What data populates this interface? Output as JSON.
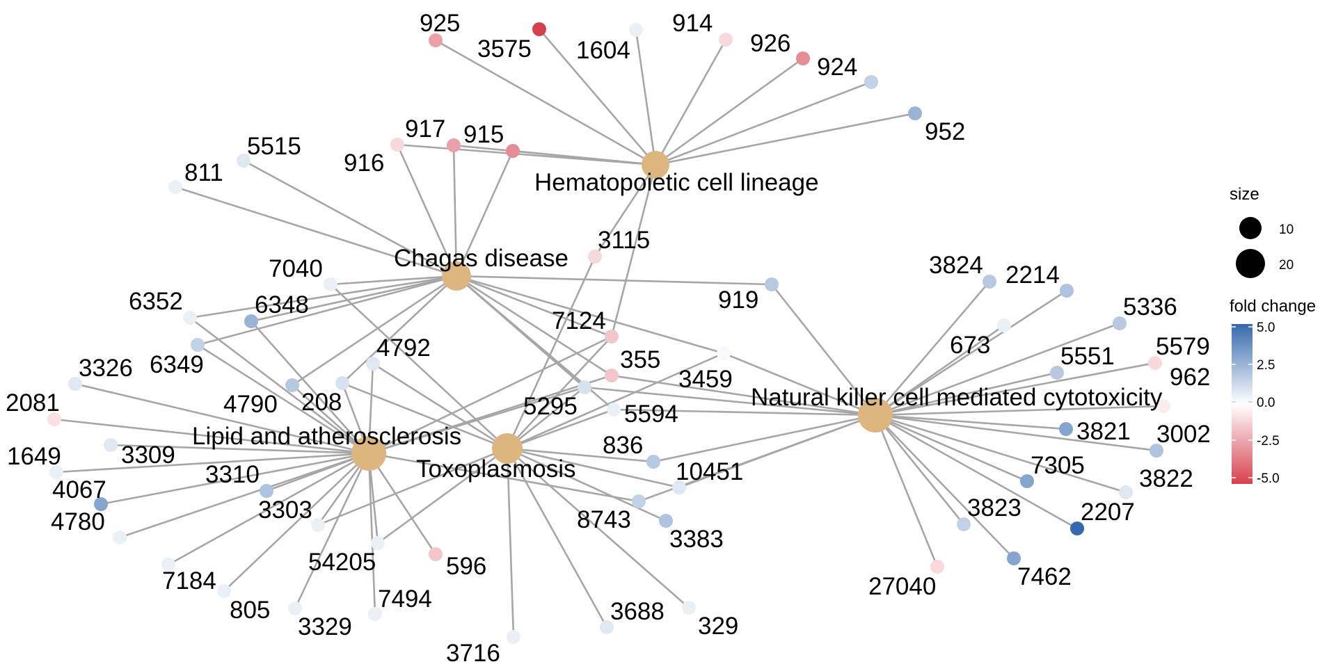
{
  "network": {
    "hubs": [
      {
        "id": "hema",
        "label": "Hematopoietic cell lineage"
      },
      {
        "id": "chagas",
        "label": "Chagas disease"
      },
      {
        "id": "lipid",
        "label": "Lipid and atherosclerosis"
      },
      {
        "id": "toxo",
        "label": "Toxoplasmosis"
      },
      {
        "id": "nk",
        "label": "Natural killer cell mediated cytotoxicity"
      }
    ],
    "hub_color": "#dcb57f",
    "genes": [
      {
        "label": "925",
        "fc": -2.5,
        "links": [
          "hema"
        ]
      },
      {
        "label": "3575",
        "fc": -5.0,
        "links": [
          "hema"
        ]
      },
      {
        "label": "1604",
        "fc": 0.5,
        "links": [
          "hema"
        ]
      },
      {
        "label": "914",
        "fc": -1.0,
        "links": [
          "hema"
        ]
      },
      {
        "label": "926",
        "fc": -3.0,
        "links": [
          "hema"
        ]
      },
      {
        "label": "924",
        "fc": 1.5,
        "links": [
          "hema"
        ]
      },
      {
        "label": "952",
        "fc": 2.5,
        "links": [
          "hema"
        ]
      },
      {
        "label": "916",
        "fc": -1.0,
        "links": [
          "hema",
          "chagas"
        ]
      },
      {
        "label": "917",
        "fc": -2.5,
        "links": [
          "hema",
          "chagas"
        ]
      },
      {
        "label": "915",
        "fc": -3.0,
        "links": [
          "hema",
          "chagas"
        ]
      },
      {
        "label": "5515",
        "fc": 0.8,
        "links": [
          "chagas"
        ]
      },
      {
        "label": "811",
        "fc": 0.5,
        "links": [
          "chagas"
        ]
      },
      {
        "label": "3115",
        "fc": -1.0,
        "links": [
          "hema",
          "toxo"
        ]
      },
      {
        "label": "7040",
        "fc": 0.5,
        "links": [
          "chagas",
          "toxo"
        ]
      },
      {
        "label": "919",
        "fc": 1.8,
        "links": [
          "chagas",
          "nk"
        ]
      },
      {
        "label": "6352",
        "fc": 0.5,
        "links": [
          "chagas",
          "lipid"
        ]
      },
      {
        "label": "6348",
        "fc": 2.5,
        "links": [
          "chagas",
          "lipid"
        ]
      },
      {
        "label": "6349",
        "fc": 1.5,
        "links": [
          "chagas",
          "lipid"
        ]
      },
      {
        "label": "7124",
        "fc": -1.5,
        "links": [
          "hema",
          "chagas",
          "lipid",
          "toxo"
        ]
      },
      {
        "label": "4792",
        "fc": 0.8,
        "links": [
          "lipid",
          "toxo"
        ]
      },
      {
        "label": "355",
        "fc": -1.5,
        "links": [
          "chagas",
          "lipid",
          "nk"
        ]
      },
      {
        "label": "3459",
        "fc": 0.2,
        "links": [
          "chagas",
          "toxo",
          "nk"
        ]
      },
      {
        "label": "3326",
        "fc": 0.8,
        "links": [
          "lipid"
        ]
      },
      {
        "label": "4790",
        "fc": 1.8,
        "links": [
          "chagas",
          "lipid"
        ]
      },
      {
        "label": "208",
        "fc": 1.0,
        "links": [
          "chagas",
          "lipid",
          "toxo"
        ]
      },
      {
        "label": "5295",
        "fc": 1.0,
        "links": [
          "chagas",
          "lipid",
          "toxo",
          "nk"
        ]
      },
      {
        "label": "5594",
        "fc": 0.5,
        "links": [
          "chagas",
          "toxo",
          "nk"
        ]
      },
      {
        "label": "2081",
        "fc": -0.8,
        "links": [
          "lipid"
        ]
      },
      {
        "label": "3309",
        "fc": 0.8,
        "links": [
          "lipid"
        ]
      },
      {
        "label": "1649",
        "fc": 0.5,
        "links": [
          "lipid"
        ]
      },
      {
        "label": "3310",
        "fc": 2.0,
        "links": [
          "lipid"
        ]
      },
      {
        "label": "4067",
        "fc": 3.0,
        "links": [
          "lipid"
        ]
      },
      {
        "label": "4780",
        "fc": 0.5,
        "links": [
          "lipid"
        ]
      },
      {
        "label": "3303",
        "fc": 0.5,
        "links": [
          "lipid",
          "toxo"
        ]
      },
      {
        "label": "54205",
        "fc": 0.5,
        "links": [
          "lipid",
          "toxo"
        ]
      },
      {
        "label": "596",
        "fc": -1.5,
        "links": [
          "lipid"
        ]
      },
      {
        "label": "836",
        "fc": 1.8,
        "links": [
          "toxo",
          "nk"
        ]
      },
      {
        "label": "10451",
        "fc": 0.8,
        "links": [
          "toxo",
          "nk"
        ]
      },
      {
        "label": "8743",
        "fc": 1.5,
        "links": [
          "lipid",
          "nk"
        ]
      },
      {
        "label": "3383",
        "fc": 2.0,
        "links": [
          "toxo"
        ]
      },
      {
        "label": "7184",
        "fc": 0.5,
        "links": [
          "lipid"
        ]
      },
      {
        "label": "805",
        "fc": 0.5,
        "links": [
          "lipid"
        ]
      },
      {
        "label": "3329",
        "fc": 0.5,
        "links": [
          "lipid"
        ]
      },
      {
        "label": "7494",
        "fc": 0.5,
        "links": [
          "lipid"
        ]
      },
      {
        "label": "3716",
        "fc": 0.5,
        "links": [
          "toxo"
        ]
      },
      {
        "label": "3688",
        "fc": 0.8,
        "links": [
          "toxo"
        ]
      },
      {
        "label": "329",
        "fc": 0.5,
        "links": [
          "toxo"
        ]
      },
      {
        "label": "3824",
        "fc": 1.8,
        "links": [
          "nk"
        ]
      },
      {
        "label": "2214",
        "fc": 2.0,
        "links": [
          "nk"
        ]
      },
      {
        "label": "673",
        "fc": 0.5,
        "links": [
          "nk"
        ]
      },
      {
        "label": "5336",
        "fc": 1.8,
        "links": [
          "nk"
        ]
      },
      {
        "label": "5551",
        "fc": 1.8,
        "links": [
          "nk"
        ]
      },
      {
        "label": "5579",
        "fc": -1.0,
        "links": [
          "nk"
        ]
      },
      {
        "label": "962",
        "fc": -0.5,
        "links": [
          "nk"
        ]
      },
      {
        "label": "3821",
        "fc": 3.0,
        "links": [
          "nk"
        ]
      },
      {
        "label": "3002",
        "fc": 2.0,
        "links": [
          "nk"
        ]
      },
      {
        "label": "7305",
        "fc": 3.0,
        "links": [
          "nk"
        ]
      },
      {
        "label": "3822",
        "fc": 0.8,
        "links": [
          "nk"
        ]
      },
      {
        "label": "3823",
        "fc": 1.5,
        "links": [
          "nk"
        ]
      },
      {
        "label": "2207",
        "fc": 5.0,
        "links": [
          "nk"
        ]
      },
      {
        "label": "27040",
        "fc": -1.0,
        "links": [
          "nk"
        ]
      },
      {
        "label": "7462",
        "fc": 3.0,
        "links": [
          "nk"
        ]
      }
    ]
  },
  "legend": {
    "size_title": "size",
    "size_items": [
      {
        "label": "10",
        "value": 10
      },
      {
        "label": "20",
        "value": 20
      }
    ],
    "color_title": "fold change",
    "color_ticks": [
      "5.0",
      "2.5",
      "0.0",
      "-2.5",
      "-5.0"
    ],
    "color_scale": {
      "low": "#d6404e",
      "mid": "#ffffff",
      "high": "#3569ad"
    }
  }
}
